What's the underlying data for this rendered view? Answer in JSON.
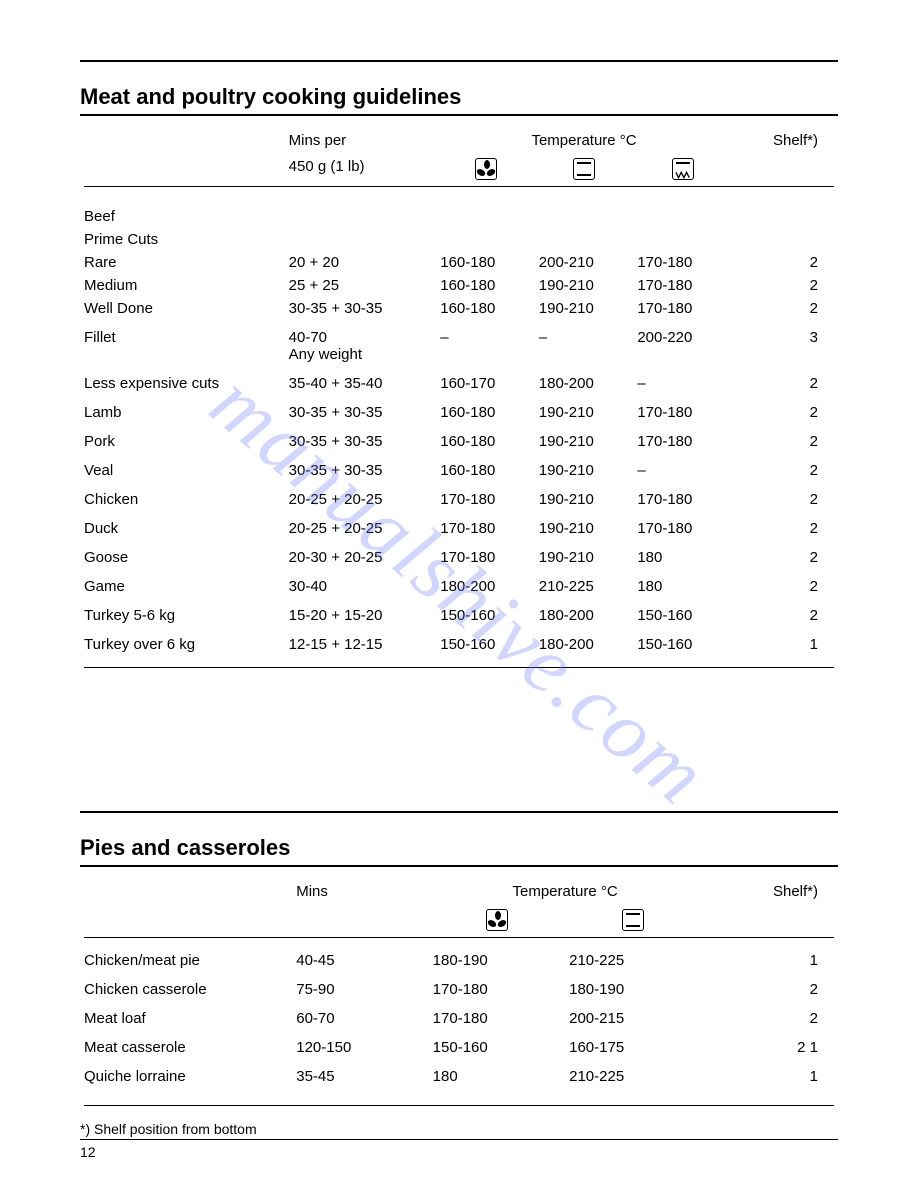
{
  "page_number": "12",
  "watermark_text": "manualshive.com",
  "watermark_color": "#6478ff4d",
  "section1": {
    "title": "Meat and poultry cooking guidelines",
    "header": {
      "col1_line1": "",
      "col2_line1": "Mins per",
      "col2_line2": "450 g (1 lb)",
      "temp_label": "Temperature °C",
      "shelf_label": "Shelf*)",
      "icons": [
        "fan",
        "conventional",
        "grill"
      ]
    },
    "group_labels": [
      "Beef",
      "Prime Cuts"
    ],
    "rows": [
      {
        "label": "Rare",
        "mins": "20 + 20",
        "t1": "160-180",
        "t2": "200-210",
        "t3": "170-180",
        "shelf": "2"
      },
      {
        "label": "Medium",
        "mins": "25 + 25",
        "t1": "160-180",
        "t2": "190-210",
        "t3": "170-180",
        "shelf": "2"
      },
      {
        "label": "Well Done",
        "mins": "30-35 + 30-35",
        "t1": "160-180",
        "t2": "190-210",
        "t3": "170-180",
        "shelf": "2",
        "gap_after": true
      },
      {
        "label": "Fillet",
        "mins": "40-70",
        "mins_line2": "Any weight",
        "t1": "–",
        "t2": "–",
        "t3": "200-220",
        "shelf": "3",
        "gap_after": true
      },
      {
        "label": "Less expensive cuts",
        "mins": "35-40 + 35-40",
        "t1": "160-170",
        "t2": "180-200",
        "t3": "–",
        "shelf": "2",
        "gap_after": true
      },
      {
        "label": "Lamb",
        "mins": "30-35 + 30-35",
        "t1": "160-180",
        "t2": "190-210",
        "t3": "170-180",
        "shelf": "2",
        "gap_after": true
      },
      {
        "label": "Pork",
        "mins": "30-35 + 30-35",
        "t1": "160-180",
        "t2": "190-210",
        "t3": "170-180",
        "shelf": "2",
        "gap_after": true
      },
      {
        "label": "Veal",
        "mins": "30-35 + 30-35",
        "t1": "160-180",
        "t2": "190-210",
        "t3": "–",
        "shelf": "2",
        "gap_after": true
      },
      {
        "label": "Chicken",
        "mins": "20-25 + 20-25",
        "t1": "170-180",
        "t2": "190-210",
        "t3": "170-180",
        "shelf": "2",
        "gap_after": true
      },
      {
        "label": "Duck",
        "mins": "20-25 + 20-25",
        "t1": "170-180",
        "t2": "190-210",
        "t3": "170-180",
        "shelf": "2",
        "gap_after": true
      },
      {
        "label": "Goose",
        "mins": "20-30 + 20-25",
        "t1": "170-180",
        "t2": "190-210",
        "t3": "180",
        "shelf": "2",
        "gap_after": true
      },
      {
        "label": "Game",
        "mins": "30-40",
        "t1": "180-200",
        "t2": "210-225",
        "t3": "180",
        "shelf": "2",
        "gap_after": true
      },
      {
        "label": "Turkey 5-6 kg",
        "mins": "15-20 + 15-20",
        "t1": "150-160",
        "t2": "180-200",
        "t3": "150-160",
        "shelf": "2",
        "gap_after": true
      },
      {
        "label": "Turkey over 6 kg",
        "mins": "12-15 + 12-15",
        "t1": "150-160",
        "t2": "180-200",
        "t3": "150-160",
        "shelf": "1"
      }
    ]
  },
  "section2": {
    "title": "Pies and casseroles",
    "header": {
      "col2_line1": "Mins",
      "temp_label": "Temperature °C",
      "shelf_label": "Shelf*)",
      "icons": [
        "fan",
        "conventional"
      ]
    },
    "rows": [
      {
        "label": "Chicken/meat pie",
        "mins": "40-45",
        "t1": "180-190",
        "t2": "210-225",
        "shelf": "1"
      },
      {
        "label": "Chicken casserole",
        "mins": "75-90",
        "t1": "170-180",
        "t2": "180-190",
        "shelf": "2"
      },
      {
        "label": "Meat loaf",
        "mins": "60-70",
        "t1": "170-180",
        "t2": "200-215",
        "shelf": "2"
      },
      {
        "label": "Meat casserole",
        "mins": "120-150",
        "t1": "150-160",
        "t2": "160-175",
        "shelf": "2    1"
      },
      {
        "label": "Quiche lorraine",
        "mins": "35-45",
        "t1": "180",
        "t2": "210-225",
        "shelf": "1"
      }
    ],
    "footnote": "*) Shelf position from bottom"
  }
}
